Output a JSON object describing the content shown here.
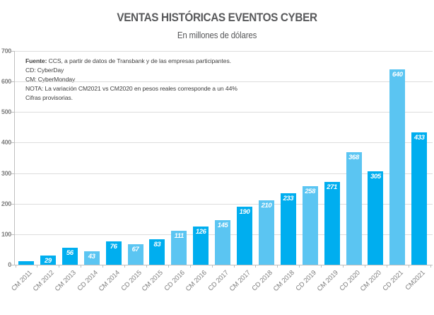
{
  "title": "VENTAS HISTÓRICAS EVENTOS CYBER",
  "subtitle": "En millones de dólares",
  "notes": {
    "lines": [
      {
        "prefix": "Fuente:",
        "text": " CCS, a partir de datos de Transbank y de las empresas participantes."
      },
      {
        "prefix": "",
        "text": "CD: CyberDay"
      },
      {
        "prefix": "",
        "text": "CM: CyberMonday"
      },
      {
        "prefix": "",
        "text": "NOTA: La variación CM2021 vs CM2020 en pesos reales corresponde a un 44%"
      },
      {
        "prefix": "",
        "text": "Cifras provisorias."
      }
    ]
  },
  "chart_data": {
    "type": "bar",
    "title": "VENTAS HISTÓRICAS EVENTOS CYBER",
    "subtitle": "En millones de dólares",
    "categories": [
      "CM 2011",
      "CM 2012",
      "CM 2013",
      "CD 2014",
      "CM 2014",
      "CD 2015",
      "CM 2015",
      "CD 2016",
      "CM 2016",
      "CD 2017",
      "CM 2017",
      "CD 2018",
      "CM 2018",
      "CD 2019",
      "CM 2019",
      "CD 2020",
      "CM 2020",
      "CD 2021",
      "CM2021"
    ],
    "values": [
      11,
      29,
      56,
      43,
      76,
      67,
      83,
      111,
      126,
      145,
      190,
      210,
      233,
      258,
      271,
      368,
      305,
      640,
      433
    ],
    "value_labels": [
      "",
      "29",
      "56",
      "43",
      "76",
      "67",
      "83",
      "111",
      "126",
      "145",
      "190",
      "210",
      "233",
      "258",
      "271",
      "368",
      "305",
      "640",
      "433"
    ],
    "event_types": [
      "CM",
      "CM",
      "CM",
      "CD",
      "CM",
      "CD",
      "CM",
      "CD",
      "CM",
      "CD",
      "CM",
      "CD",
      "CM",
      "CD",
      "CM",
      "CD",
      "CM",
      "CD",
      "CM"
    ],
    "colors": {
      "CM": "#00AEEF",
      "CD": "#5BC5F2"
    },
    "xlabel": "",
    "ylabel": "",
    "ylim": [
      0,
      700
    ],
    "yticks": [
      0,
      100,
      200,
      300,
      400,
      500,
      600,
      700
    ],
    "grid": "horizontal",
    "legend": "none"
  }
}
